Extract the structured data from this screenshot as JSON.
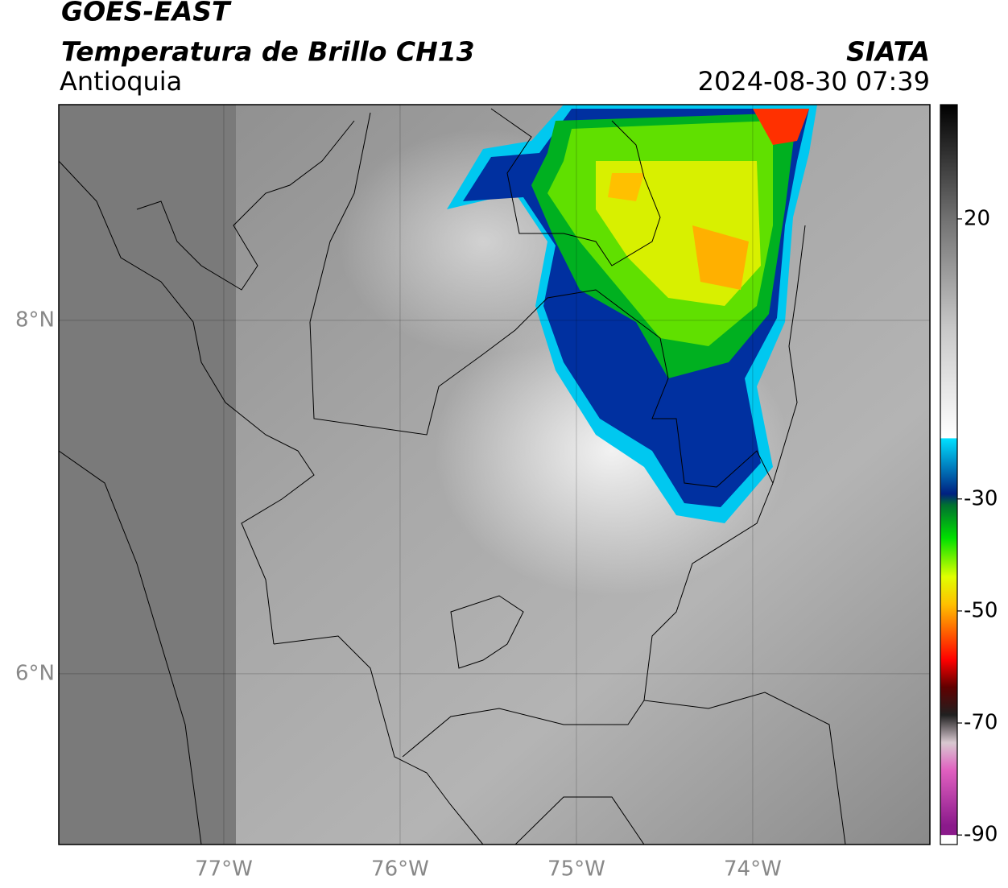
{
  "header": {
    "title": "GOES-EAST",
    "subtitle": "Temperatura de Brillo CH13",
    "region": "Antioquia",
    "source": "SIATA",
    "datetime": "2024-08-30 07:39"
  },
  "map": {
    "xlim": [
      -77.936,
      -72.995
    ],
    "ylim": [
      5.034,
      9.22
    ],
    "xticks": [
      {
        "value": -77,
        "label": "77°W"
      },
      {
        "value": -76,
        "label": "76°W"
      },
      {
        "value": -75,
        "label": "75°W"
      },
      {
        "value": -74,
        "label": "74°W"
      }
    ],
    "yticks": [
      {
        "value": 8,
        "label": "8°N"
      },
      {
        "value": 6,
        "label": "6°N"
      }
    ],
    "grid": true
  },
  "colorbar": {
    "lim": [
      -91.7,
      40.4
    ],
    "ticks": [
      20,
      -30,
      -50,
      -70,
      -90
    ],
    "colormap": [
      {
        "value": -90,
        "color": "#8b1a8b"
      },
      {
        "value": -80,
        "color": "#e060c0"
      },
      {
        "value": -75,
        "color": "#d8c8d0"
      },
      {
        "value": -70,
        "color": "#202020"
      },
      {
        "value": -65,
        "color": "#600000"
      },
      {
        "value": -60,
        "color": "#ff0000"
      },
      {
        "value": -50,
        "color": "#ffc000"
      },
      {
        "value": -45,
        "color": "#e0ff00"
      },
      {
        "value": -38,
        "color": "#00e000"
      },
      {
        "value": -32,
        "color": "#007030"
      },
      {
        "value": -30,
        "color": "#002080"
      },
      {
        "value": -20,
        "color": "#00e0ff"
      },
      {
        "value": -19.9,
        "color": "#ffffff"
      },
      {
        "value": 0,
        "color": "#c8c8c8"
      },
      {
        "value": 20,
        "color": "#707070"
      },
      {
        "value": 40.4,
        "color": "#000000"
      }
    ]
  }
}
